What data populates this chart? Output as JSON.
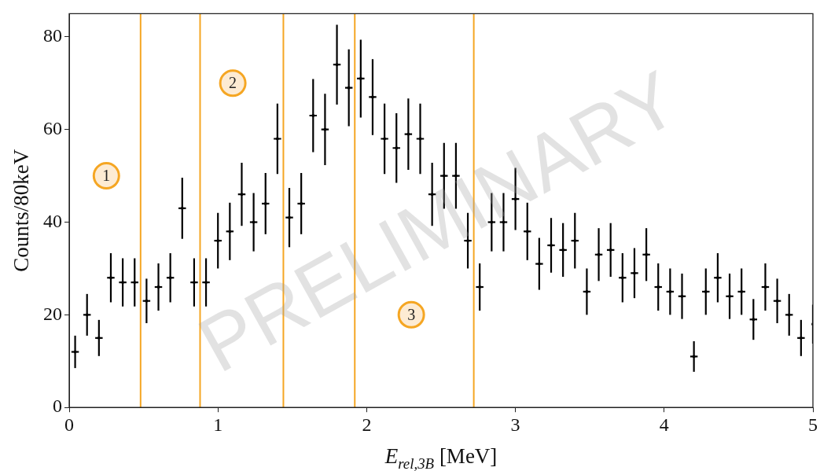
{
  "chart_data": {
    "type": "scatter",
    "xlabel": "E$_{rel,3B}$ [MeV]",
    "ylabel": "Counts/80keV",
    "xlim": [
      0,
      5
    ],
    "xticks": [
      0,
      1,
      2,
      3,
      4,
      5
    ],
    "ylim": [
      0,
      85
    ],
    "yticks": [
      0,
      20,
      40,
      60,
      80
    ],
    "grid": false,
    "series": [
      {
        "color": "#000000",
        "x": [
          0.04,
          0.12,
          0.2,
          0.28,
          0.36,
          0.44,
          0.52,
          0.6,
          0.68,
          0.76,
          0.84,
          0.92,
          1,
          1.08,
          1.16,
          1.24,
          1.32,
          1.4,
          1.48,
          1.56,
          1.64,
          1.72,
          1.8,
          1.88,
          1.96,
          2.04,
          2.12,
          2.2,
          2.28,
          2.36,
          2.44,
          2.52,
          2.6,
          2.68,
          2.76,
          2.84,
          2.92,
          3,
          3.08,
          3.16,
          3.24,
          3.32,
          3.4,
          3.48,
          3.56,
          3.64,
          3.72,
          3.8,
          3.88,
          3.96,
          4.04,
          4.12,
          4.2,
          4.28,
          4.36,
          4.44,
          4.52,
          4.6,
          4.68,
          4.76,
          4.84,
          4.92,
          5
        ],
        "values": [
          12,
          20,
          15,
          28,
          27,
          27,
          23,
          26,
          28,
          43,
          27,
          27,
          36,
          38,
          46,
          40,
          44,
          58,
          41,
          44,
          63,
          60,
          74,
          69,
          71,
          67,
          58,
          56,
          59,
          58,
          46,
          50,
          50,
          36,
          26,
          40,
          40,
          45,
          38,
          31,
          35,
          34,
          36,
          25,
          33,
          34,
          28,
          29,
          33,
          26,
          25,
          24,
          11,
          25,
          28,
          24,
          25,
          19,
          26,
          23,
          20,
          15,
          18
        ],
        "errors": [
          3.5,
          4.5,
          3.9,
          5.3,
          5.2,
          5.2,
          4.8,
          5.1,
          5.3,
          6.6,
          5.2,
          5.2,
          6,
          6.2,
          6.8,
          6.3,
          6.6,
          7.6,
          6.4,
          6.6,
          7.9,
          7.7,
          8.6,
          8.3,
          8.4,
          8.2,
          7.6,
          7.5,
          7.7,
          7.6,
          6.8,
          7.1,
          7.1,
          6,
          5.1,
          6.3,
          6.3,
          6.7,
          6.2,
          5.6,
          5.9,
          5.8,
          6,
          5,
          5.7,
          5.8,
          5.3,
          5.4,
          5.7,
          5.1,
          5,
          4.9,
          3.3,
          5,
          5.3,
          4.9,
          5,
          4.4,
          5.1,
          4.8,
          4.5,
          3.9,
          4.2
        ],
        "xerrors": [
          0.025,
          0.025,
          0.025,
          0.025,
          0.025,
          0.025,
          0.025,
          0.025,
          0.025,
          0.025,
          0.025,
          0.025,
          0.025,
          0.025,
          0.025,
          0.025,
          0.025,
          0.025,
          0.025,
          0.025,
          0.025,
          0.025,
          0.025,
          0.025,
          0.025,
          0.025,
          0.025,
          0.025,
          0.025,
          0.025,
          0.025,
          0.025,
          0.025,
          0.025,
          0.025,
          0.025,
          0.025,
          0.025,
          0.025,
          0.025,
          0.025,
          0.025,
          0.025,
          0.025,
          0.025,
          0.025,
          0.025,
          0.025,
          0.025,
          0.025,
          0.025,
          0.025,
          0.025,
          0.025,
          0.025,
          0.025,
          0.025,
          0.025,
          0.025,
          0.025,
          0.025,
          0.025,
          null
        ]
      }
    ],
    "ref_lines": [
      {
        "axis": "x",
        "value": 0.48,
        "color": "#f5a623"
      },
      {
        "axis": "x",
        "value": 0.88,
        "color": "#f5a623"
      },
      {
        "axis": "x",
        "value": 1.44,
        "color": "#f5a623"
      },
      {
        "axis": "x",
        "value": 1.92,
        "color": "#f5a623"
      },
      {
        "axis": "x",
        "value": 2.72,
        "color": "#f5a623"
      }
    ],
    "annotations": [
      {
        "text": "1",
        "x": 0.25,
        "y": 50
      },
      {
        "text": "2",
        "x": 1.1,
        "y": 70
      },
      {
        "text": "3",
        "x": 2.3,
        "y": 20
      },
      "PRELIMINARY"
    ]
  }
}
